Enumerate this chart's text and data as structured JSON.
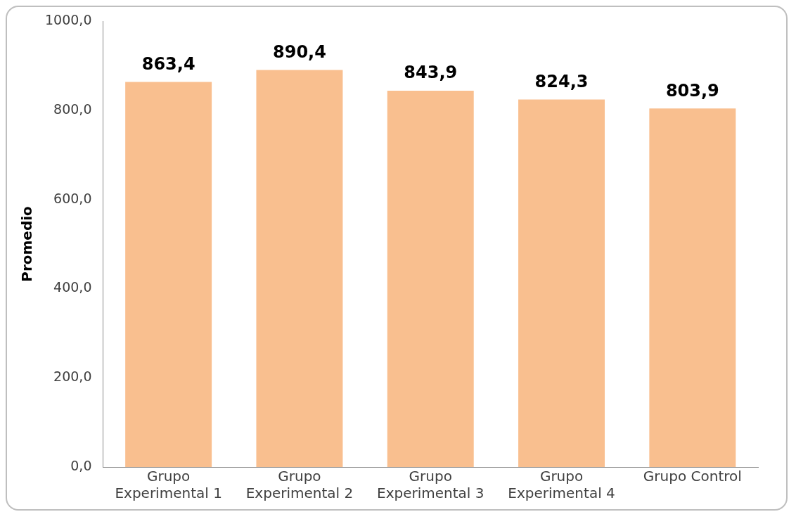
{
  "chart_data": {
    "type": "bar",
    "ylabel": "Promedio",
    "categories": [
      "Grupo Experimental 1",
      "Grupo Experimental 2",
      "Grupo Experimental 3",
      "Grupo Experimental 4",
      "Grupo Control"
    ],
    "values": [
      863.4,
      890.4,
      843.9,
      824.3,
      803.9
    ],
    "value_labels": [
      "863,4",
      "890,4",
      "843,9",
      "824,3",
      "803,9"
    ],
    "color": "#f9bf8f",
    "ylim": [
      0,
      1000
    ],
    "yticks": [
      {
        "value": 0,
        "label": "0,0"
      },
      {
        "value": 200,
        "label": "200,0"
      },
      {
        "value": 400,
        "label": "400,0"
      },
      {
        "value": 600,
        "label": "600,0"
      },
      {
        "value": 800,
        "label": "800,0"
      },
      {
        "value": 1000,
        "label": "1000,0"
      }
    ],
    "grid": false,
    "legend": false
  }
}
